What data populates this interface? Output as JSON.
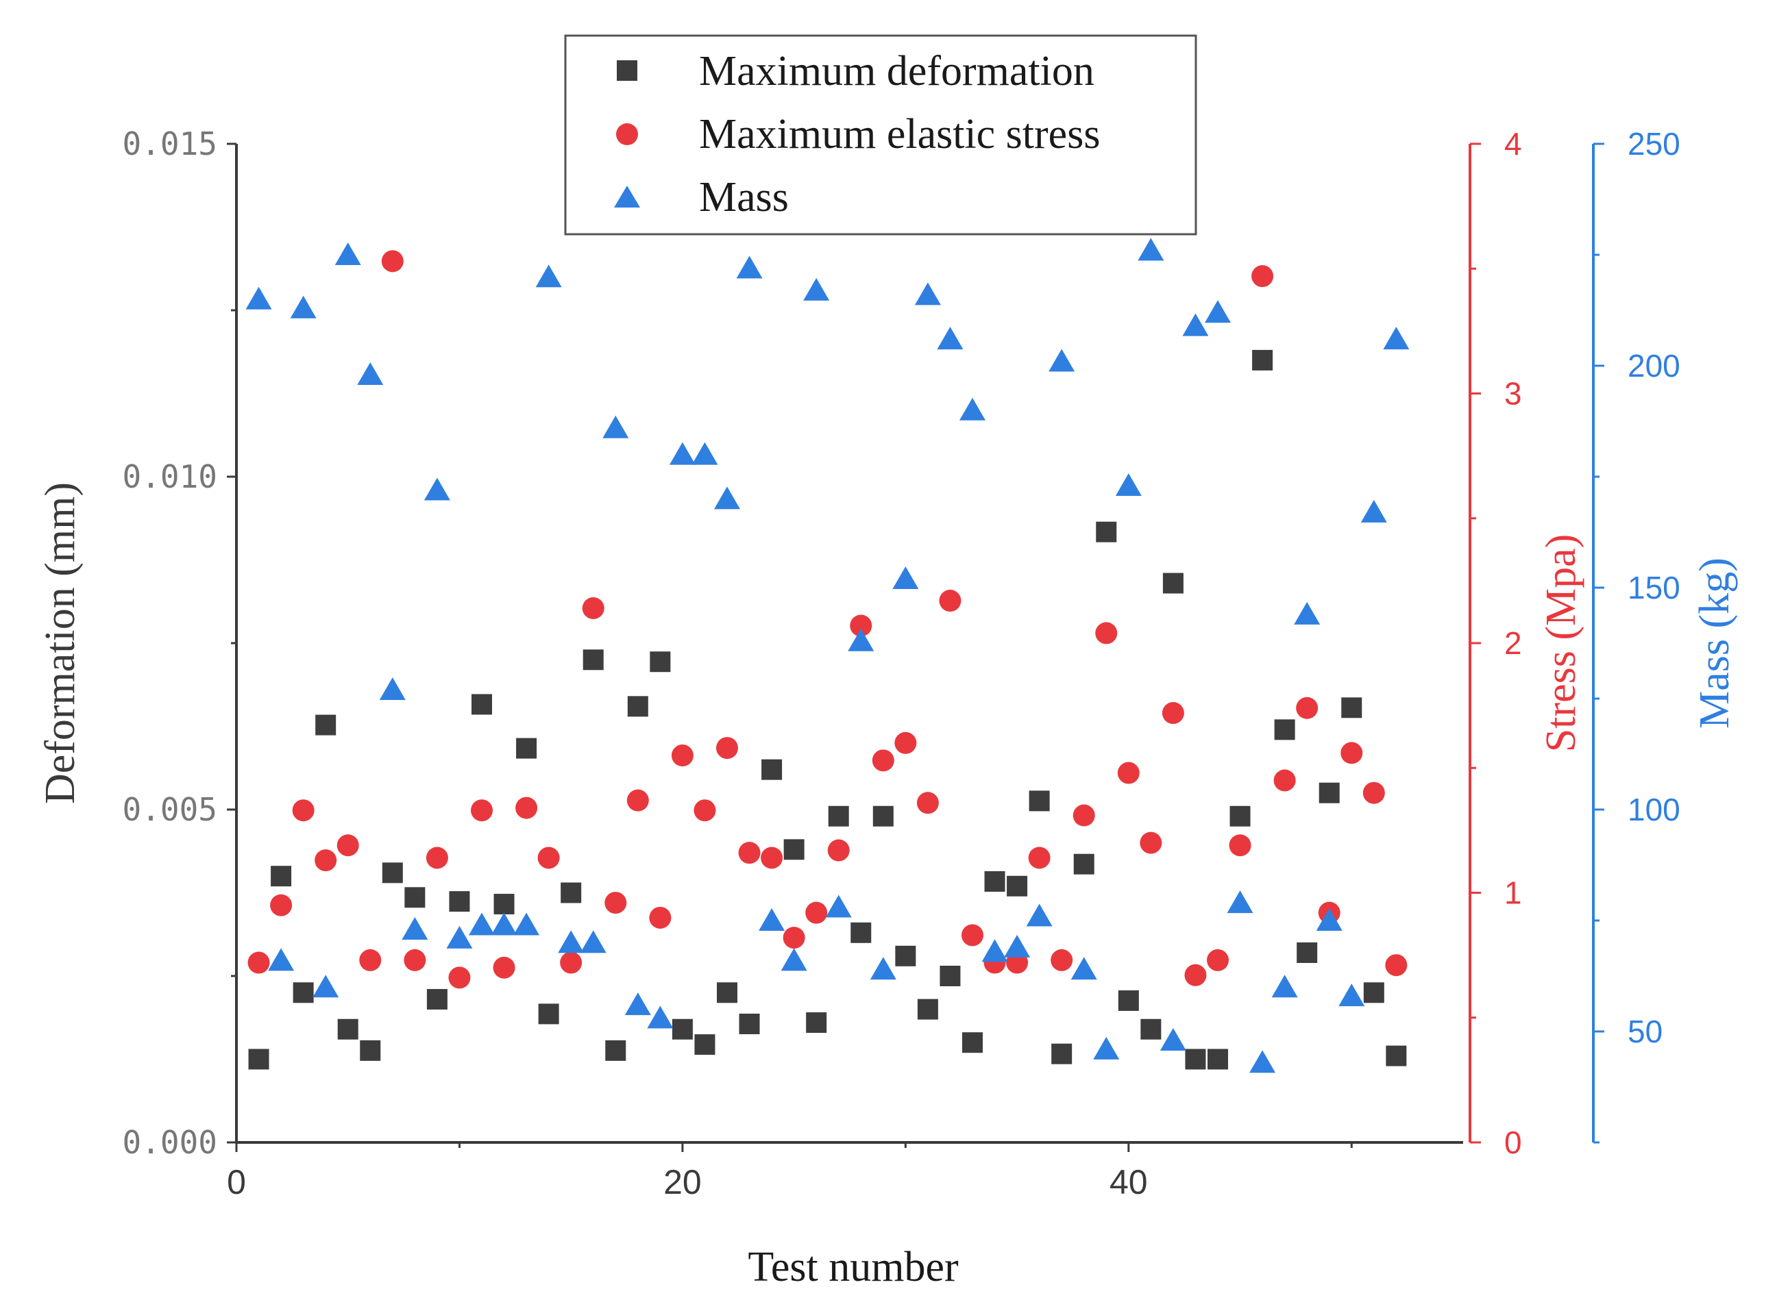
{
  "chart_data": {
    "type": "scatter",
    "xlabel": "Test number",
    "x_ticks": [
      "0",
      "20",
      "40"
    ],
    "xlim": [
      0,
      55
    ],
    "axes": {
      "deformation": {
        "label": "Deformation (mm)",
        "range": [
          0,
          0.015
        ],
        "ticks": [
          "0.000",
          "0.005",
          "0.010",
          "0.015"
        ],
        "tick_values": [
          0,
          0.005,
          0.01,
          0.015
        ],
        "color": "#3a3a3a"
      },
      "stress": {
        "label": "Stress (Mpa)",
        "range": [
          0,
          4
        ],
        "ticks": [
          "0",
          "1",
          "2",
          "3",
          "4"
        ],
        "tick_values": [
          0,
          1,
          2,
          3,
          4
        ],
        "color": "#e8383d"
      },
      "mass": {
        "label": "Mass (kg)",
        "range": [
          25,
          250
        ],
        "ticks": [
          "50",
          "100",
          "150",
          "200",
          "250"
        ],
        "tick_values": [
          50,
          100,
          150,
          200,
          250
        ],
        "color": "#2f7fe0"
      }
    },
    "legend": {
      "position": "top-center",
      "entries": [
        "Maximum deformation",
        "Maximum elastic stress",
        "Mass"
      ]
    },
    "series": [
      {
        "name": "Maximum deformation",
        "axis": "deformation",
        "marker": "square",
        "color": "#3d3d3d",
        "x": [
          1,
          2,
          3,
          4,
          5,
          6,
          7,
          8,
          9,
          10,
          11,
          12,
          13,
          14,
          15,
          16,
          17,
          18,
          19,
          20,
          21,
          22,
          23,
          24,
          25,
          26,
          27,
          28,
          29,
          30,
          31,
          32,
          33,
          34,
          35,
          36,
          37,
          38,
          39,
          40,
          41,
          42,
          43,
          44,
          45,
          46,
          47,
          48,
          49,
          50,
          51,
          52
        ],
        "values": [
          0.00125,
          0.004,
          0.00225,
          0.00627,
          0.0017,
          0.00138,
          0.00405,
          0.00368,
          0.00215,
          0.00362,
          0.00658,
          0.00358,
          0.00592,
          0.00193,
          0.00375,
          0.00725,
          0.00138,
          0.00655,
          0.00722,
          0.0017,
          0.00147,
          0.00225,
          0.00178,
          0.0056,
          0.0044,
          0.0018,
          0.0049,
          0.00315,
          0.0049,
          0.0028,
          0.002,
          0.0025,
          0.0015,
          0.00392,
          0.00385,
          0.00513,
          0.00133,
          0.00418,
          0.00917,
          0.00213,
          0.0017,
          0.0084,
          0.00125,
          0.00125,
          0.0049,
          0.01175,
          0.0062,
          0.00285,
          0.00525,
          0.00653,
          0.00225,
          0.0013
        ]
      },
      {
        "name": "Maximum elastic stress",
        "axis": "stress",
        "marker": "circle",
        "color": "#e8383d",
        "x": [
          1,
          2,
          3,
          4,
          5,
          6,
          7,
          8,
          9,
          10,
          11,
          12,
          13,
          14,
          15,
          16,
          17,
          18,
          19,
          20,
          21,
          22,
          23,
          24,
          25,
          26,
          27,
          28,
          29,
          30,
          31,
          32,
          33,
          34,
          35,
          36,
          37,
          38,
          39,
          40,
          41,
          42,
          43,
          44,
          45,
          46,
          47,
          48,
          49,
          50,
          51,
          52
        ],
        "values": [
          0.72,
          0.95,
          1.33,
          1.13,
          1.19,
          0.73,
          3.53,
          0.73,
          1.14,
          0.66,
          1.33,
          0.7,
          1.34,
          1.14,
          0.72,
          2.14,
          0.96,
          1.37,
          0.9,
          1.55,
          1.33,
          1.58,
          1.16,
          1.14,
          0.82,
          0.92,
          1.17,
          2.07,
          1.53,
          1.6,
          1.36,
          2.17,
          0.83,
          0.72,
          0.72,
          1.14,
          0.73,
          1.31,
          2.04,
          1.48,
          1.2,
          1.72,
          0.67,
          0.73,
          1.19,
          3.47,
          1.45,
          1.74,
          0.92,
          1.56,
          1.4,
          0.71
        ]
      },
      {
        "name": "Mass",
        "axis": "mass",
        "marker": "triangle",
        "color": "#2f7fe0",
        "x": [
          1,
          2,
          3,
          4,
          5,
          6,
          7,
          8,
          9,
          10,
          11,
          12,
          13,
          14,
          15,
          16,
          17,
          18,
          19,
          20,
          21,
          22,
          23,
          24,
          25,
          26,
          27,
          28,
          29,
          30,
          31,
          32,
          33,
          34,
          35,
          36,
          37,
          38,
          39,
          40,
          41,
          42,
          43,
          44,
          45,
          46,
          47,
          48,
          49,
          50,
          51,
          52
        ],
        "values": [
          215,
          66,
          213,
          60,
          225,
          198,
          127,
          73,
          172,
          71,
          74,
          74,
          74,
          220,
          70,
          70,
          186,
          56,
          53,
          180,
          180,
          170,
          222,
          75,
          66,
          217,
          78,
          138,
          64,
          152,
          216,
          206,
          190,
          68,
          69,
          76,
          201,
          64,
          46,
          173,
          226,
          48,
          209,
          212,
          79,
          43,
          60,
          144,
          75,
          58,
          167,
          206
        ]
      }
    ]
  }
}
